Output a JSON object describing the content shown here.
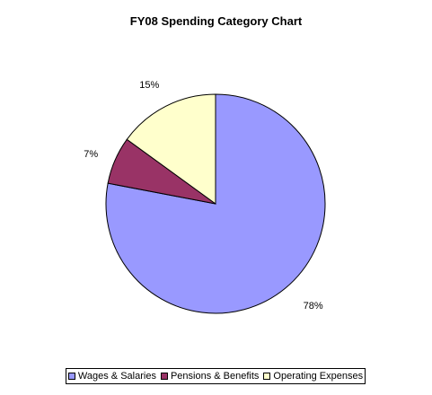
{
  "chart_data": {
    "type": "pie",
    "title": "FY08 Spending Category Chart",
    "categories": [
      "Wages & Salaries",
      "Pensions & Benefits",
      "Operating Expenses"
    ],
    "values": [
      78,
      7,
      15
    ],
    "data_labels": [
      "78%",
      "7%",
      "15%"
    ],
    "colors": [
      "#9999ff",
      "#993366",
      "#ffffcc"
    ],
    "legend_position": "bottom",
    "start_angle": "top, clockwise"
  }
}
